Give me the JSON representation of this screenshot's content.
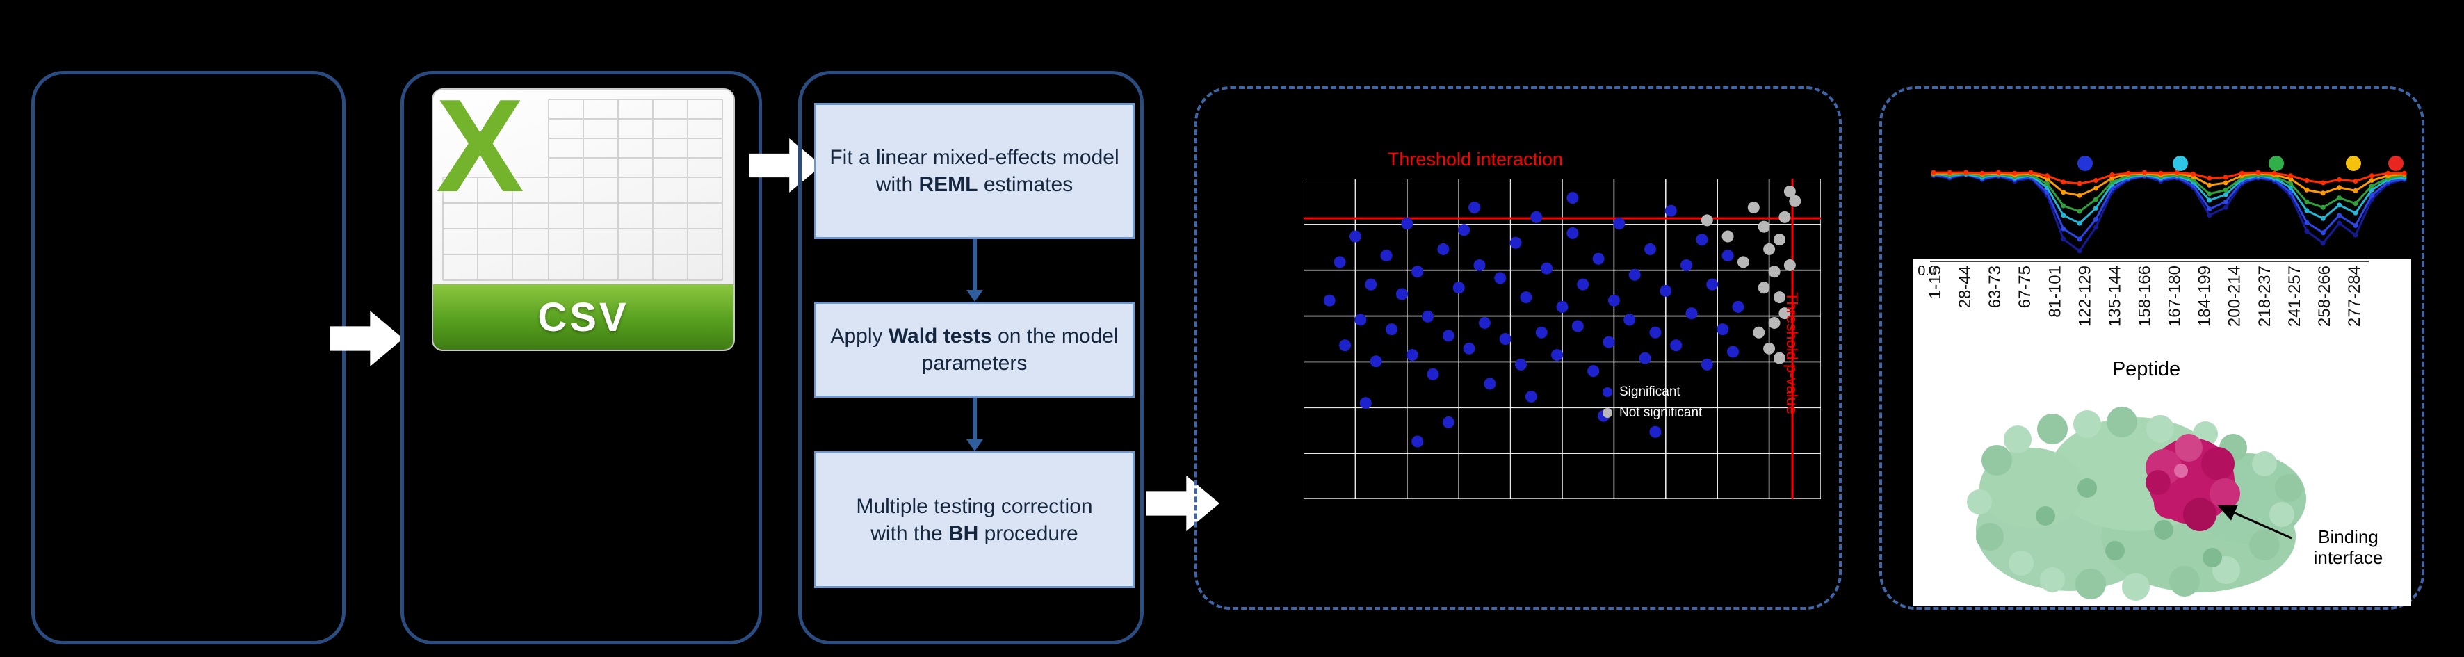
{
  "colors": {
    "container_border": "#2b4c80",
    "dashed_border": "#3f66a8",
    "step_fill": "#dae4f4",
    "step_border": "#6f97cf",
    "threshold_red": "#ff0000",
    "flow_arrow": "#ffffff",
    "step_arrow": "#2e5e9e",
    "csv_green": "#74b42c",
    "protein_base": "#a3d3b0",
    "binding_site": "#c2186b"
  },
  "flow": {
    "csv": {
      "logo_letter": "X",
      "banner_label": "CSV"
    },
    "steps": [
      {
        "segments": [
          {
            "t": "Fit a linear mixed-effects model with "
          },
          {
            "t": "REML",
            "b": true
          },
          {
            "t": " estimates"
          }
        ]
      },
      {
        "segments": [
          {
            "t": "Apply "
          },
          {
            "t": "Wald tests",
            "b": true
          },
          {
            "t": " on the model parameters"
          }
        ]
      },
      {
        "segments": [
          {
            "t": "Multiple testing correction"
          },
          {
            "br": true
          },
          {
            "t": "with the "
          },
          {
            "t": "BH",
            "b": true
          },
          {
            "t": " procedure"
          }
        ]
      }
    ]
  },
  "results_panel": {
    "binding_annotation": "Binding interface",
    "peptide_axis_label": "Peptide",
    "y_axis_tick": "0.0"
  },
  "chart_data": [
    {
      "type": "scatter",
      "threshold_labels": {
        "horizontal": "Threshold interaction",
        "vertical": "Threshold p-value"
      },
      "thresholds": {
        "y_pct": 12.4,
        "x_pct": 94.5
      },
      "grid": {
        "cols": 10,
        "rows": 7,
        "color": "#ffffff"
      },
      "legend_position": "inside-bottom-right",
      "series": [
        {
          "name": "Significant",
          "color": "#1e22cc",
          "points": [
            [
              5,
              38
            ],
            [
              7,
              26
            ],
            [
              8,
              52
            ],
            [
              10,
              18
            ],
            [
              11,
              44
            ],
            [
              13,
              33
            ],
            [
              14,
              57
            ],
            [
              16,
              24
            ],
            [
              17,
              47
            ],
            [
              19,
              36
            ],
            [
              20,
              14
            ],
            [
              21,
              55
            ],
            [
              22,
              29
            ],
            [
              24,
              43
            ],
            [
              25,
              61
            ],
            [
              27,
              22
            ],
            [
              28,
              49
            ],
            [
              30,
              34
            ],
            [
              31,
              16
            ],
            [
              32,
              53
            ],
            [
              34,
              27
            ],
            [
              35,
              45
            ],
            [
              36,
              64
            ],
            [
              38,
              31
            ],
            [
              39,
              50
            ],
            [
              41,
              20
            ],
            [
              42,
              58
            ],
            [
              43,
              37
            ],
            [
              45,
              12
            ],
            [
              46,
              48
            ],
            [
              47,
              28
            ],
            [
              49,
              55
            ],
            [
              50,
              40
            ],
            [
              52,
              17
            ],
            [
              53,
              46
            ],
            [
              54,
              33
            ],
            [
              56,
              60
            ],
            [
              57,
              25
            ],
            [
              59,
              51
            ],
            [
              60,
              38
            ],
            [
              61,
              14
            ],
            [
              63,
              44
            ],
            [
              64,
              30
            ],
            [
              66,
              56
            ],
            [
              67,
              22
            ],
            [
              68,
              48
            ],
            [
              70,
              35
            ],
            [
              71,
              10
            ],
            [
              72,
              52
            ],
            [
              74,
              27
            ],
            [
              75,
              42
            ],
            [
              77,
              19
            ],
            [
              78,
              58
            ],
            [
              79,
              33
            ],
            [
              81,
              47
            ],
            [
              82,
              24
            ],
            [
              83,
              54
            ],
            [
              84,
              40
            ],
            [
              12,
              70
            ],
            [
              28,
              76
            ],
            [
              44,
              68
            ],
            [
              58,
              74
            ],
            [
              33,
              9
            ],
            [
              52,
              6
            ],
            [
              68,
              79
            ],
            [
              22,
              82
            ]
          ]
        },
        {
          "name": "Not significant",
          "color": "#b8b8b8",
          "points": [
            [
              87,
              9
            ],
            [
              89,
              15
            ],
            [
              90,
              22
            ],
            [
              91,
              29
            ],
            [
              92,
              37
            ],
            [
              91,
              45
            ],
            [
              90,
              53
            ],
            [
              93,
              12
            ],
            [
              92,
              19
            ],
            [
              94,
              27
            ],
            [
              93,
              42
            ],
            [
              89,
              34
            ],
            [
              95,
              7
            ],
            [
              92,
              56
            ],
            [
              78,
              13
            ],
            [
              82,
              18
            ],
            [
              85,
              26
            ],
            [
              94,
              4
            ],
            [
              88,
              48
            ]
          ]
        }
      ]
    },
    {
      "type": "line",
      "xlabel": "Peptide",
      "y_tick_labels": [
        "0.0"
      ],
      "x_tick_labels": [
        "1-15",
        "28-44",
        "63-73",
        "67-75",
        "81-101",
        "122-129",
        "135-144",
        "158-166",
        "167-180",
        "184-199",
        "200-214",
        "218-237",
        "241-257",
        "258-266",
        "277-284"
      ],
      "legend_marker_colors": [
        "#2135d8",
        "#2ec6e6",
        "#31b04a",
        "#f4c20d",
        "#e8251f"
      ],
      "series": [
        {
          "color": "#151a99",
          "values": [
            0.05,
            0.08,
            0.04,
            0.1,
            0.06,
            0.12,
            0.08,
            0.3,
            0.85,
            1.0,
            0.7,
            0.25,
            0.1,
            0.06,
            0.12,
            0.08,
            0.2,
            0.55,
            0.45,
            0.15,
            0.08,
            0.12,
            0.3,
            0.75,
            0.9,
            0.65,
            0.8,
            0.35,
            0.15,
            0.1
          ]
        },
        {
          "color": "#2a46e8",
          "values": [
            0.04,
            0.07,
            0.03,
            0.09,
            0.05,
            0.1,
            0.07,
            0.26,
            0.72,
            0.85,
            0.6,
            0.21,
            0.09,
            0.05,
            0.1,
            0.07,
            0.17,
            0.47,
            0.38,
            0.13,
            0.07,
            0.1,
            0.26,
            0.64,
            0.77,
            0.55,
            0.68,
            0.3,
            0.13,
            0.09
          ]
        },
        {
          "color": "#22b7d6",
          "values": [
            0.03,
            0.05,
            0.03,
            0.07,
            0.04,
            0.08,
            0.05,
            0.2,
            0.55,
            0.65,
            0.46,
            0.16,
            0.07,
            0.04,
            0.08,
            0.05,
            0.13,
            0.36,
            0.29,
            0.1,
            0.05,
            0.08,
            0.2,
            0.49,
            0.59,
            0.42,
            0.52,
            0.23,
            0.1,
            0.07
          ]
        },
        {
          "color": "#2ea13a",
          "values": [
            0.03,
            0.04,
            0.02,
            0.05,
            0.03,
            0.06,
            0.04,
            0.15,
            0.43,
            0.5,
            0.35,
            0.13,
            0.05,
            0.03,
            0.06,
            0.04,
            0.1,
            0.28,
            0.23,
            0.08,
            0.04,
            0.06,
            0.15,
            0.38,
            0.45,
            0.33,
            0.4,
            0.18,
            0.08,
            0.05
          ]
        },
        {
          "color": "#ff9900",
          "values": [
            0.02,
            0.02,
            0.01,
            0.03,
            0.02,
            0.04,
            0.02,
            0.09,
            0.26,
            0.3,
            0.21,
            0.08,
            0.03,
            0.02,
            0.04,
            0.02,
            0.06,
            0.17,
            0.14,
            0.05,
            0.02,
            0.04,
            0.09,
            0.23,
            0.27,
            0.2,
            0.24,
            0.11,
            0.05,
            0.03
          ]
        },
        {
          "color": "#ff2d00",
          "values": [
            0.01,
            0.01,
            0.01,
            0.02,
            0.01,
            0.02,
            0.01,
            0.05,
            0.13,
            0.15,
            0.11,
            0.04,
            0.02,
            0.01,
            0.02,
            0.01,
            0.03,
            0.08,
            0.07,
            0.02,
            0.01,
            0.02,
            0.05,
            0.11,
            0.14,
            0.1,
            0.12,
            0.05,
            0.02,
            0.02
          ]
        }
      ]
    }
  ]
}
